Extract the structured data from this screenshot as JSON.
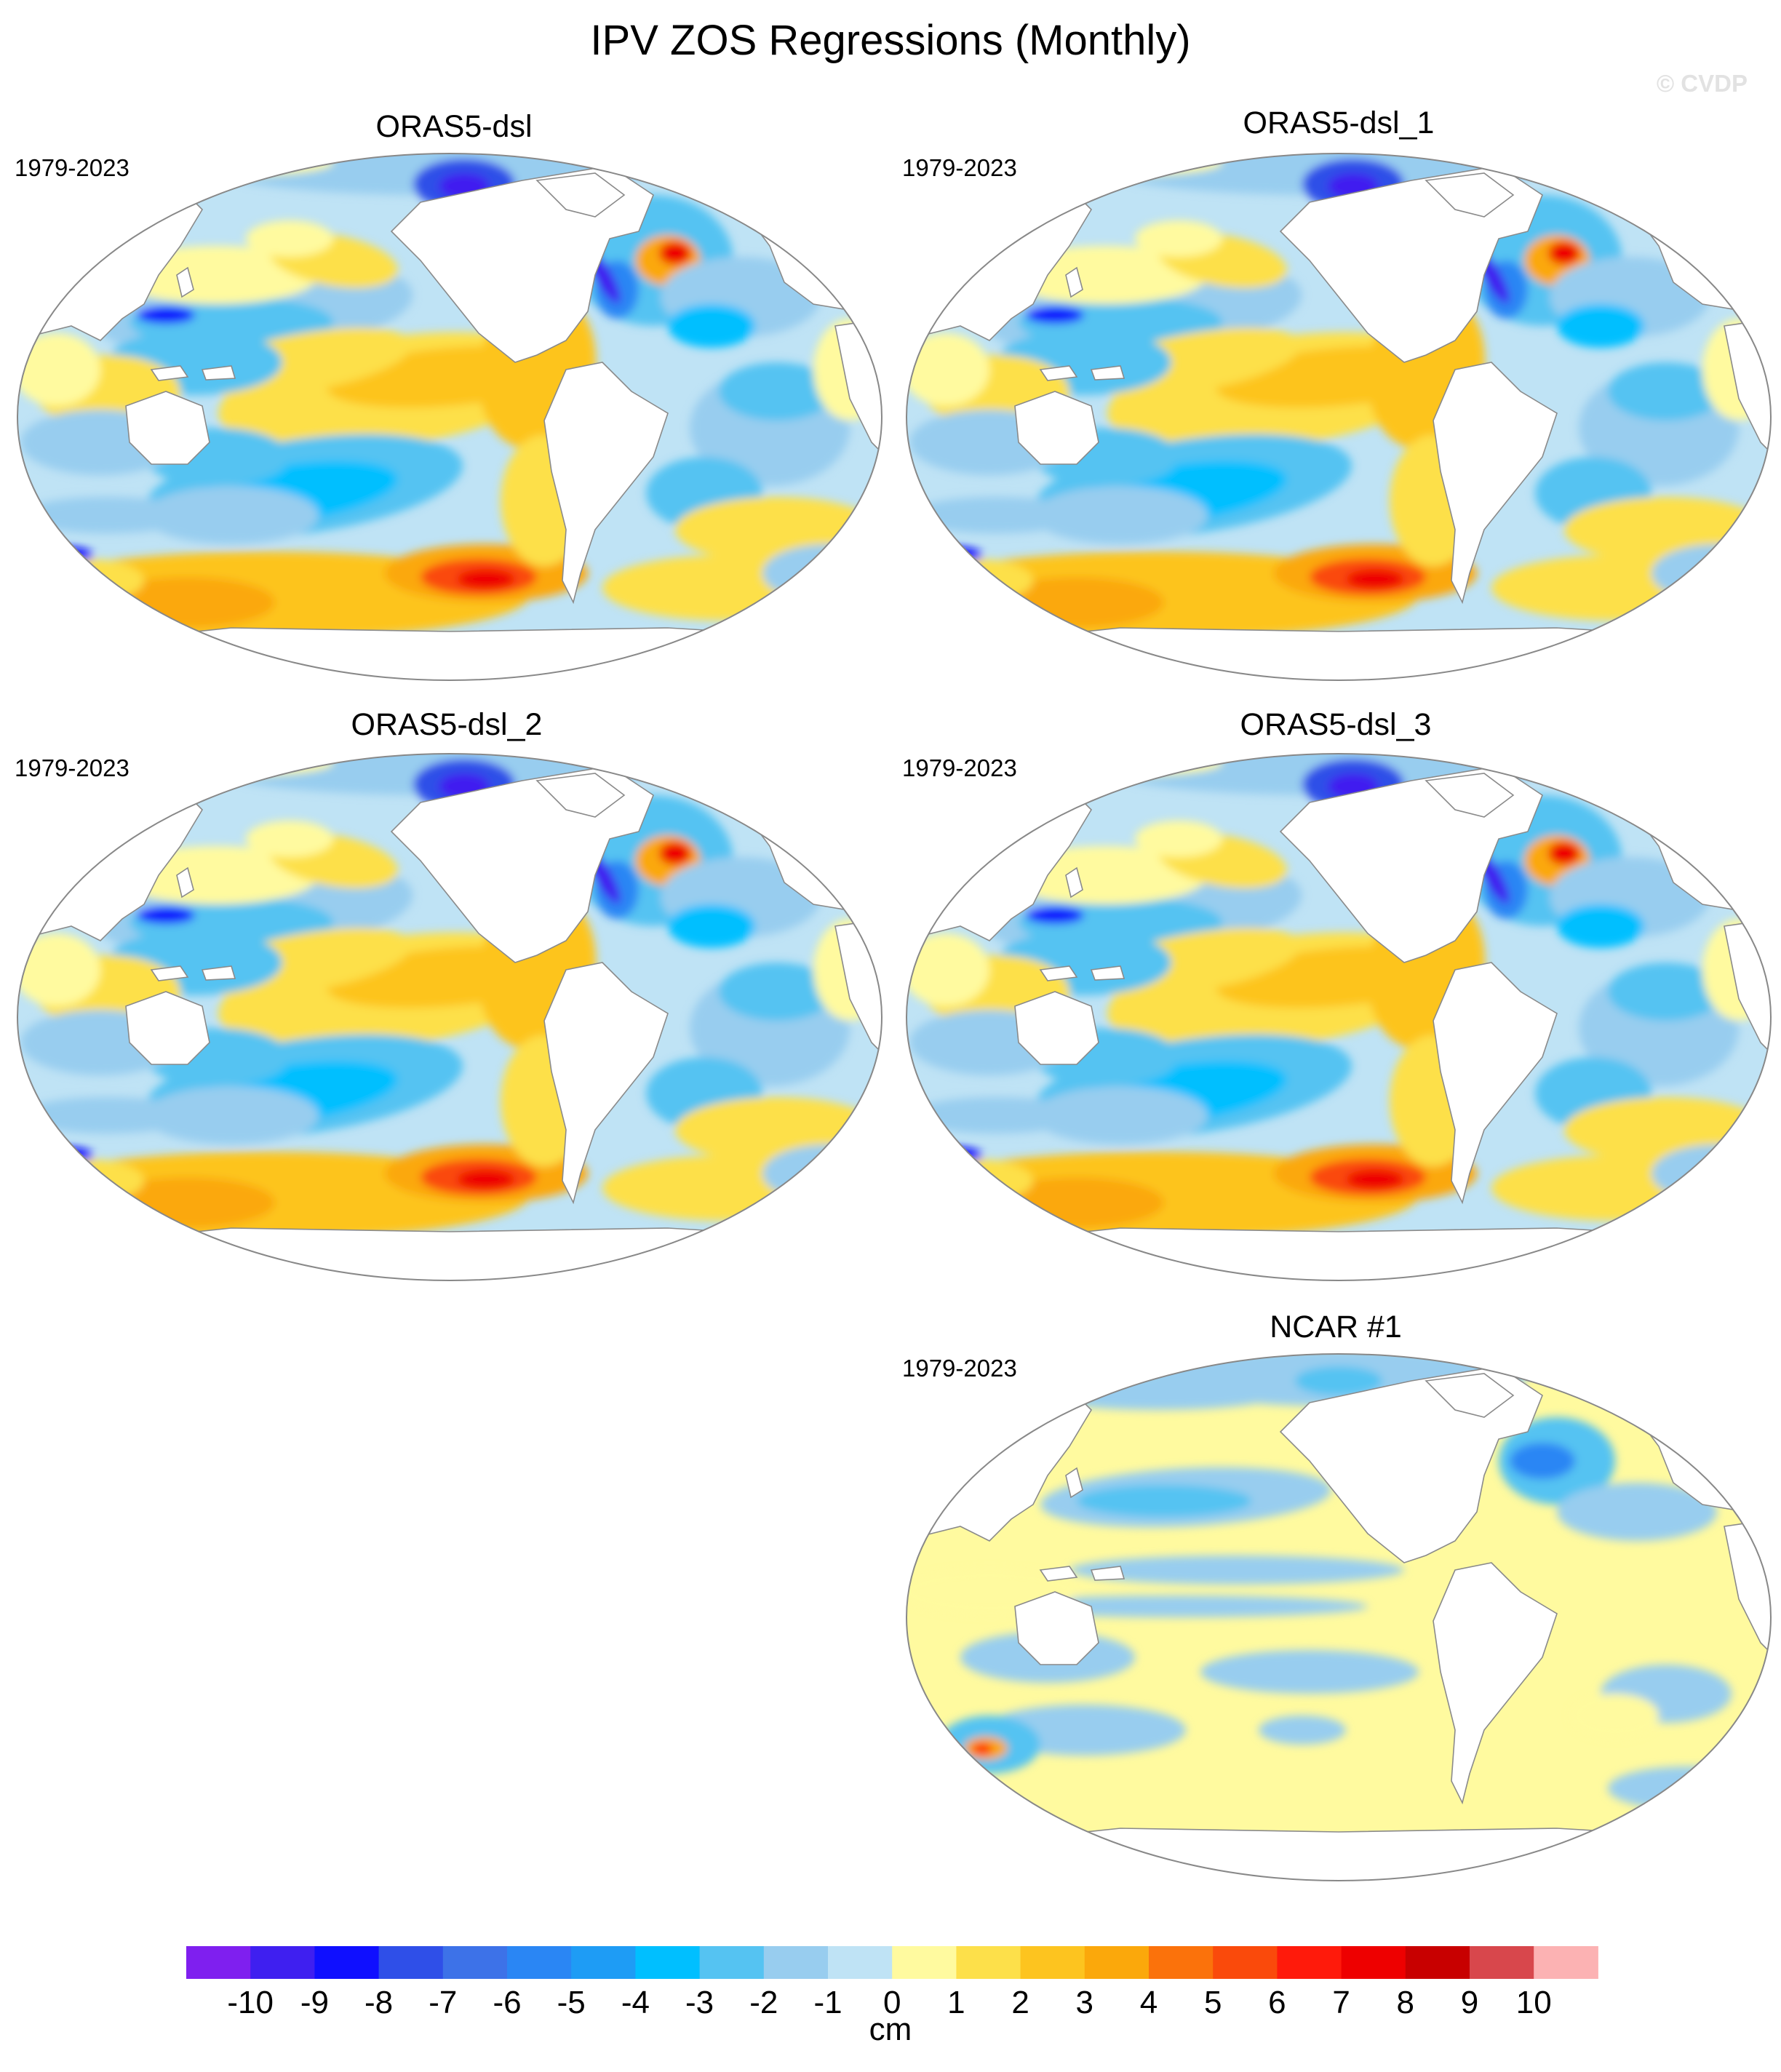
{
  "title": "IPV ZOS Regressions (Monthly)",
  "watermark": "© CVDP",
  "panels": [
    {
      "name": "ORAS5-dsl",
      "period": "1979-2023"
    },
    {
      "name": "ORAS5-dsl_1",
      "period": "1979-2023"
    },
    {
      "name": "ORAS5-dsl_2",
      "period": "1979-2023"
    },
    {
      "name": "ORAS5-dsl_3",
      "period": "1979-2023"
    },
    {
      "name": "NCAR #1",
      "period": "1979-2023"
    }
  ],
  "colorbar": {
    "units": "cm",
    "labels": [
      "-10",
      "-9",
      "-8",
      "-7",
      "-6",
      "-5",
      "-4",
      "-3",
      "-2",
      "-1",
      "0",
      "1",
      "2",
      "3",
      "4",
      "5",
      "6",
      "7",
      "8",
      "9",
      "10"
    ],
    "colors": [
      "#7f1fef",
      "#3f1ff0",
      "#0f0fff",
      "#2f4fe8",
      "#3d72e8",
      "#2a86f4",
      "#1e9cf5",
      "#00bfff",
      "#55c3f2",
      "#98cdef",
      "#bfe3f5",
      "#fffa9f",
      "#fde04a",
      "#fdc41f",
      "#fba80b",
      "#fb720b",
      "#fa4a0b",
      "#ff1a0b",
      "#ee0000",
      "#c80000",
      "#d8474c",
      "#fcb2b3"
    ]
  },
  "chart_data": {
    "type": "heatmap",
    "projection": "Robinson (Pacific-centered)",
    "variable": "ZOS regression onto IPV",
    "units": "cm",
    "contour_levels": [
      -10,
      -9,
      -8,
      -7,
      -6,
      -5,
      -4,
      -3,
      -2,
      -1,
      0,
      1,
      2,
      3,
      4,
      5,
      6,
      7,
      8,
      9,
      10
    ],
    "panels": [
      "ORAS5-dsl",
      "ORAS5-dsl_1",
      "ORAS5-dsl_2",
      "ORAS5-dsl_3",
      "NCAR #1"
    ]
  }
}
